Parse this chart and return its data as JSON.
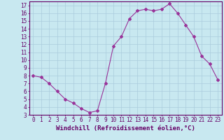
{
  "x": [
    0,
    1,
    2,
    3,
    4,
    5,
    6,
    7,
    8,
    9,
    10,
    11,
    12,
    13,
    14,
    15,
    16,
    17,
    18,
    19,
    20,
    21,
    22,
    23
  ],
  "y": [
    8.0,
    7.8,
    7.0,
    6.0,
    5.0,
    4.5,
    3.8,
    3.3,
    3.5,
    7.0,
    11.8,
    13.0,
    15.3,
    16.3,
    16.5,
    16.3,
    16.5,
    17.2,
    16.0,
    14.5,
    13.0,
    10.5,
    9.5,
    7.5
  ],
  "line_color": "#993399",
  "marker": "D",
  "marker_size": 2,
  "bg_color": "#c8e8f0",
  "grid_color": "#aaccdd",
  "xlabel": "Windchill (Refroidissement éolien,°C)",
  "xlim": [
    -0.5,
    23.5
  ],
  "ylim": [
    3,
    17.5
  ],
  "yticks": [
    3,
    4,
    5,
    6,
    7,
    8,
    9,
    10,
    11,
    12,
    13,
    14,
    15,
    16,
    17
  ],
  "xticks": [
    0,
    1,
    2,
    3,
    4,
    5,
    6,
    7,
    8,
    9,
    10,
    11,
    12,
    13,
    14,
    15,
    16,
    17,
    18,
    19,
    20,
    21,
    22,
    23
  ],
  "tick_label_fontsize": 5.5,
  "xlabel_fontsize": 6.5,
  "axis_color": "#660066",
  "tick_color": "#660066"
}
